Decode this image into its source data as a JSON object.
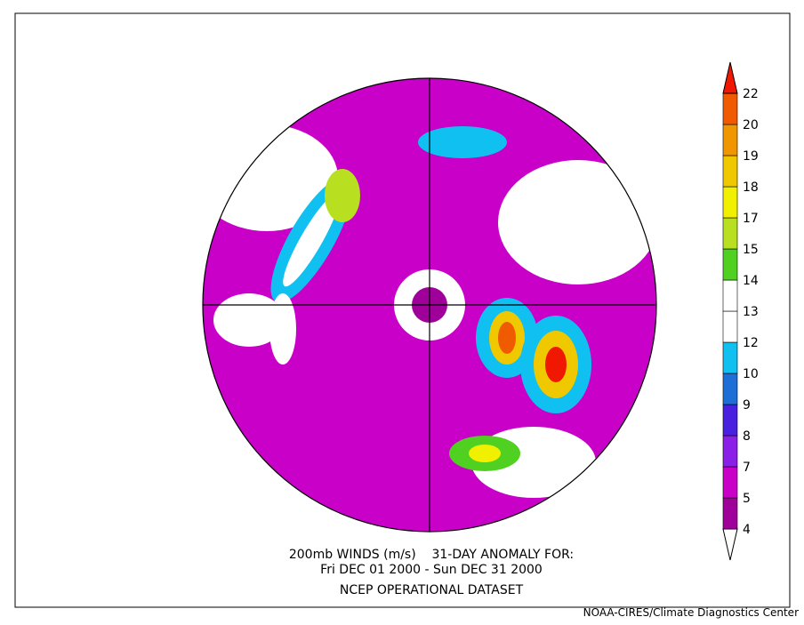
{
  "map": {
    "title_line_1": "200mb WINDS (m/s)    31-DAY ANOMALY FOR:",
    "title_line_2": "Fri DEC 01 2000 - Sun DEC 31 2000",
    "title_line_3": "NCEP OPERATIONAL DATASET",
    "credit": "NOAA-CIRES/Climate Diagnostics Center",
    "colorbar": {
      "levels": [
        4,
        5,
        7,
        8,
        9,
        10,
        12,
        13,
        14,
        15,
        17,
        18,
        19,
        20,
        22
      ],
      "colors": [
        "#ffffff",
        "#a0009a",
        "#c800c8",
        "#8a20e8",
        "#4a20e0",
        "#1e6ed8",
        "#10c0f0",
        "#ffffff",
        "#ffffff",
        "#50d020",
        "#b8e020",
        "#f0f000",
        "#f0c800",
        "#f09600",
        "#f05a00",
        "#f01800"
      ]
    }
  }
}
